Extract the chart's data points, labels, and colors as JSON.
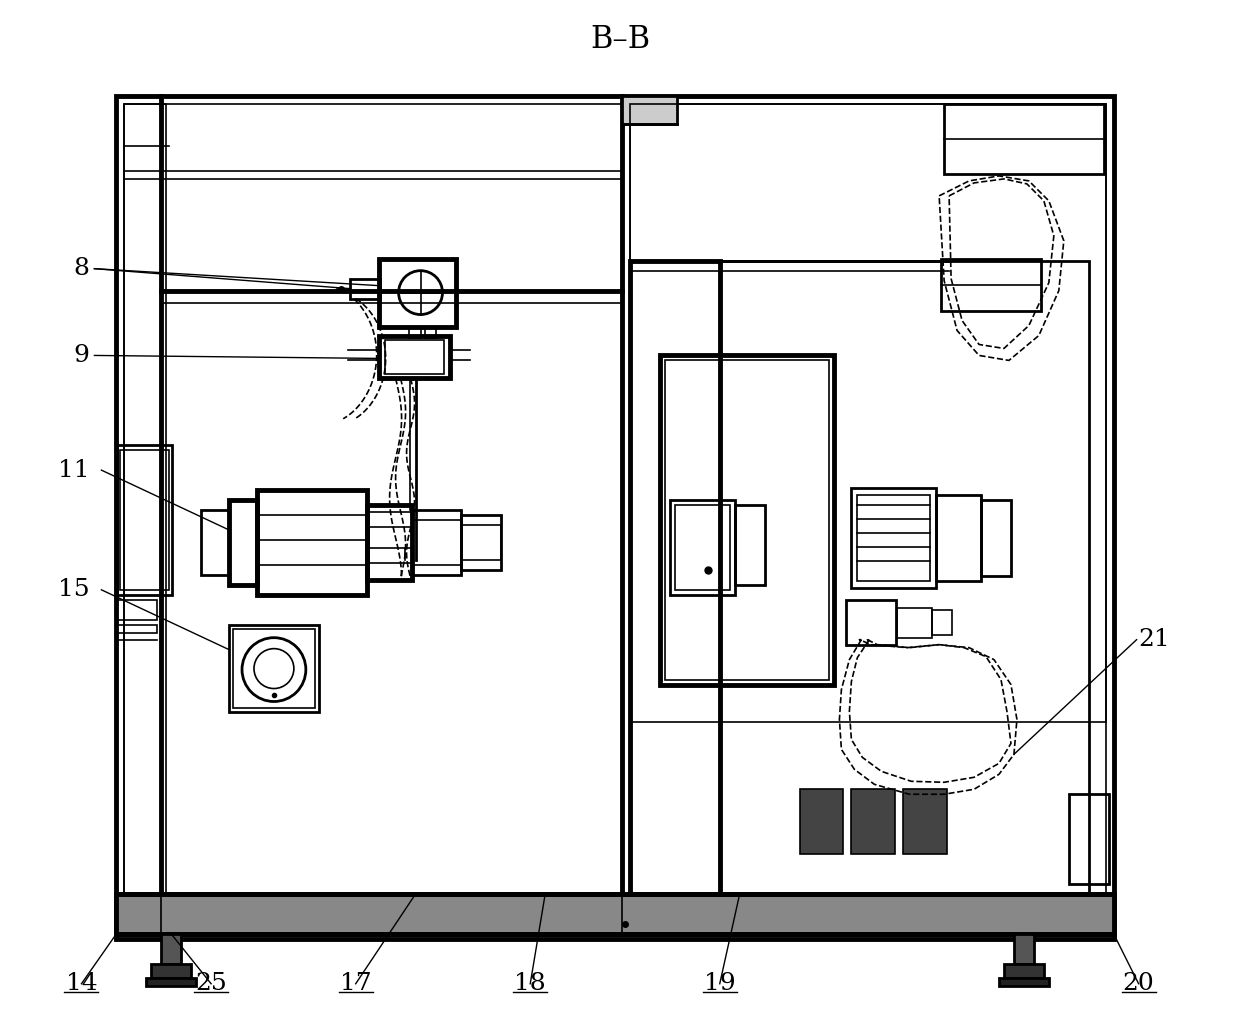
{
  "title": "B–B",
  "bg_color": "#ffffff",
  "line_color": "#000000",
  "lw_outer": 3.5,
  "lw_med": 2.0,
  "lw_thin": 1.2,
  "label_fs": 18
}
